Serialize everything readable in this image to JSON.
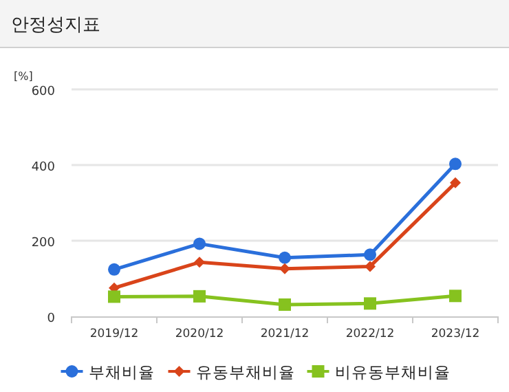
{
  "chart_data": {
    "type": "line",
    "title": "안정성지표",
    "ylabel": "[%]",
    "categories": [
      "2019/12",
      "2020/12",
      "2021/12",
      "2022/12",
      "2023/12"
    ],
    "series": [
      {
        "name": "부채비율",
        "color": "#2a6fdb",
        "marker": "circle",
        "values": [
          124,
          192,
          155,
          163,
          403
        ]
      },
      {
        "name": "유동부채비율",
        "color": "#d9441a",
        "marker": "diamond",
        "values": [
          75,
          143,
          126,
          132,
          353
        ]
      },
      {
        "name": "비유동부채비율",
        "color": "#86c21f",
        "marker": "square",
        "values": [
          52,
          53,
          31,
          34,
          54
        ]
      }
    ],
    "ylim": [
      0,
      600
    ],
    "yticks": [
      0,
      200,
      400,
      600
    ],
    "grid": "y",
    "legend": "bottom"
  }
}
